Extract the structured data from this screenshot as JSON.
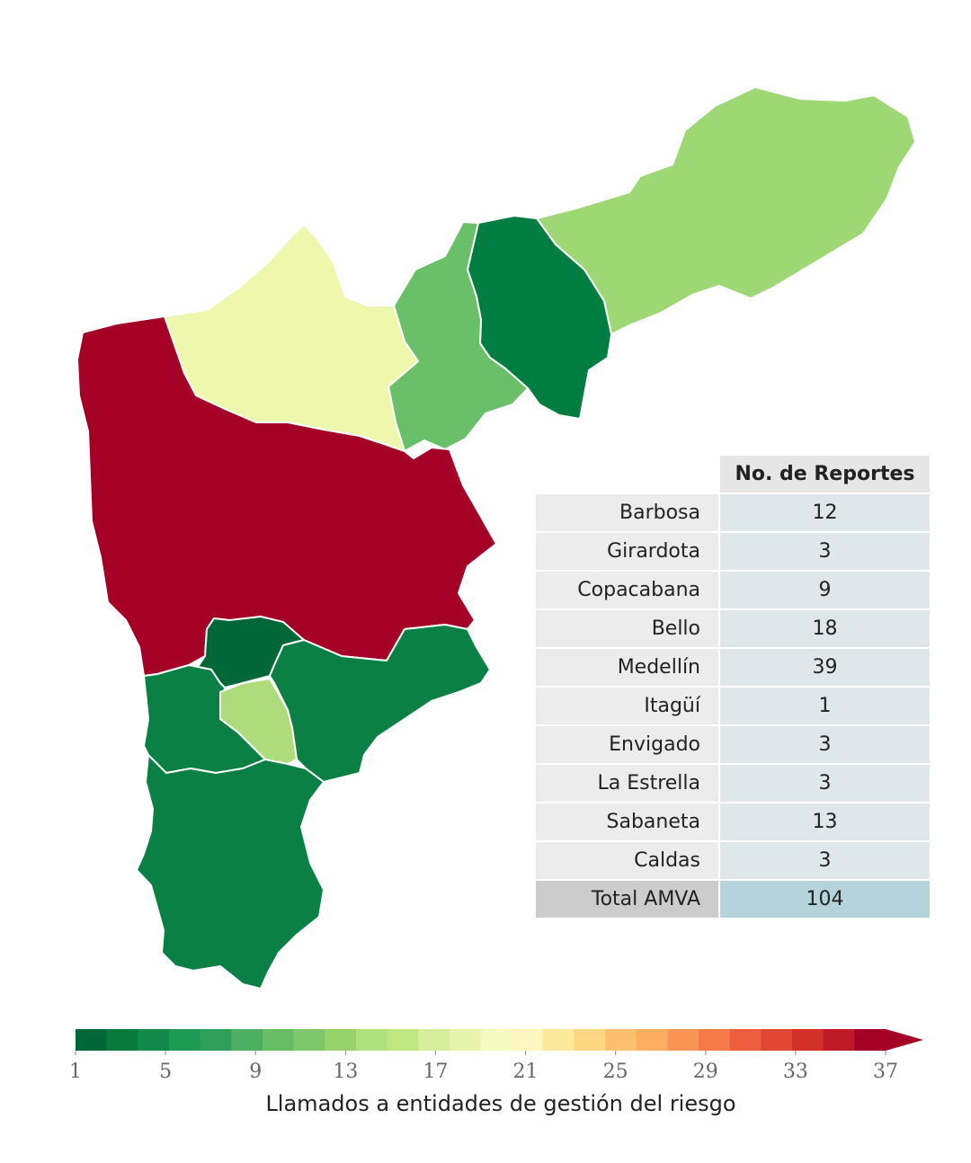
{
  "colorbar": {
    "label": "Llamados a entidades de gestión del riesgo",
    "ticks": [
      "1",
      "5",
      "9",
      "13",
      "17",
      "21",
      "25",
      "29",
      "33",
      "37"
    ],
    "min": 1,
    "max": 37,
    "colors": [
      "#006837",
      "#087a3e",
      "#138a49",
      "#1d9a53",
      "#2ea05b",
      "#4bb062",
      "#66bd63",
      "#7ec86b",
      "#97d268",
      "#ade17a",
      "#c0e680",
      "#d6ee9b",
      "#e6f5ab",
      "#f4fac0",
      "#fff6c0",
      "#fee89a",
      "#fdd784",
      "#fdc06f",
      "#fdae61",
      "#f99455",
      "#f47a47",
      "#ed5c3c",
      "#e14632",
      "#d3302a",
      "#bf1a27",
      "#a50026"
    ]
  },
  "table": {
    "header": "No. de Reportes",
    "rows": [
      {
        "name": "Barbosa",
        "value": "12"
      },
      {
        "name": "Girardota",
        "value": "3"
      },
      {
        "name": "Copacabana",
        "value": "9"
      },
      {
        "name": "Bello",
        "value": "18"
      },
      {
        "name": "Medellín",
        "value": "39"
      },
      {
        "name": "Itagüí",
        "value": "1"
      },
      {
        "name": "Envigado",
        "value": "3"
      },
      {
        "name": "La Estrella",
        "value": "3"
      },
      {
        "name": "Sabaneta",
        "value": "13"
      },
      {
        "name": "Caldas",
        "value": "3"
      }
    ],
    "total": {
      "name": "Total AMVA",
      "value": "104"
    }
  },
  "region_colors": {
    "barbosa": "#9dd875",
    "girardota": "#007d40",
    "copacabana": "#6abf69",
    "bello": "#eef8ad",
    "medellin": "#a50026",
    "itagui": "#006837",
    "envigado": "#0a8044",
    "la_estrella": "#0a8044",
    "sabaneta": "#aedc7c",
    "caldas": "#0a8044"
  }
}
